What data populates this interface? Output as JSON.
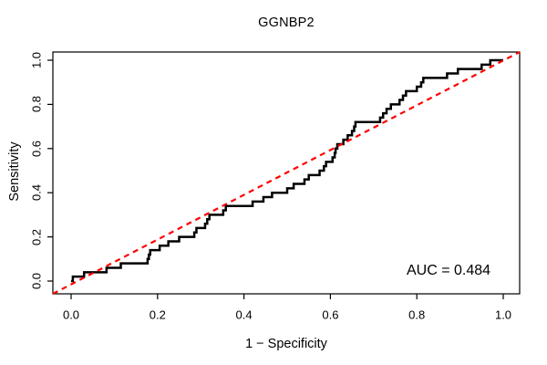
{
  "figure": {
    "title": "GGNBP2",
    "annotation": {
      "auc_label": "AUC = 0.484",
      "auc_value": 0.484
    }
  },
  "chart_data": {
    "type": "line",
    "subtype": "roc-step-curve",
    "title": "GGNBP2",
    "xlabel": "1 − Specificity",
    "ylabel": "Sensitivity",
    "xlim": [
      0,
      1
    ],
    "ylim": [
      0,
      1
    ],
    "grid": false,
    "legend_position": "none",
    "x_ticks": [
      0.0,
      0.2,
      0.4,
      0.6,
      0.8,
      1.0
    ],
    "y_ticks": [
      0.0,
      0.2,
      0.4,
      0.6,
      0.8,
      1.0
    ],
    "x_tick_labels": [
      "0.0",
      "0.2",
      "0.4",
      "0.6",
      "0.8",
      "1.0"
    ],
    "y_tick_labels": [
      "0.0",
      "0.2",
      "0.4",
      "0.6",
      "0.8",
      "1.0"
    ],
    "annotations": [
      {
        "text": "AUC = 0.484",
        "x": 0.87,
        "y": 0.05
      }
    ],
    "series": [
      {
        "name": "ROC curve",
        "color": "#000000",
        "style": "solid",
        "line_width": 2.5,
        "draw": "step",
        "points": [
          [
            0.0,
            0.0
          ],
          [
            0.004,
            0.02
          ],
          [
            0.03,
            0.04
          ],
          [
            0.082,
            0.06
          ],
          [
            0.115,
            0.08
          ],
          [
            0.177,
            0.1
          ],
          [
            0.18,
            0.12
          ],
          [
            0.183,
            0.14
          ],
          [
            0.205,
            0.16
          ],
          [
            0.225,
            0.18
          ],
          [
            0.25,
            0.2
          ],
          [
            0.285,
            0.22
          ],
          [
            0.29,
            0.24
          ],
          [
            0.31,
            0.26
          ],
          [
            0.315,
            0.28
          ],
          [
            0.32,
            0.3
          ],
          [
            0.352,
            0.32
          ],
          [
            0.358,
            0.34
          ],
          [
            0.42,
            0.36
          ],
          [
            0.445,
            0.38
          ],
          [
            0.465,
            0.4
          ],
          [
            0.5,
            0.42
          ],
          [
            0.515,
            0.44
          ],
          [
            0.54,
            0.46
          ],
          [
            0.55,
            0.48
          ],
          [
            0.575,
            0.5
          ],
          [
            0.585,
            0.52
          ],
          [
            0.59,
            0.54
          ],
          [
            0.605,
            0.56
          ],
          [
            0.61,
            0.58
          ],
          [
            0.612,
            0.6
          ],
          [
            0.616,
            0.62
          ],
          [
            0.63,
            0.64
          ],
          [
            0.64,
            0.66
          ],
          [
            0.65,
            0.68
          ],
          [
            0.655,
            0.7
          ],
          [
            0.658,
            0.72
          ],
          [
            0.715,
            0.74
          ],
          [
            0.722,
            0.76
          ],
          [
            0.73,
            0.78
          ],
          [
            0.74,
            0.8
          ],
          [
            0.76,
            0.82
          ],
          [
            0.768,
            0.84
          ],
          [
            0.775,
            0.86
          ],
          [
            0.8,
            0.88
          ],
          [
            0.81,
            0.9
          ],
          [
            0.815,
            0.92
          ],
          [
            0.87,
            0.94
          ],
          [
            0.895,
            0.96
          ],
          [
            0.95,
            0.98
          ],
          [
            0.97,
            1.0
          ],
          [
            1.0,
            1.0
          ]
        ]
      },
      {
        "name": "Chance diagonal",
        "color": "#FF0000",
        "style": "dashed",
        "line_width": 2.2,
        "draw": "line",
        "points": [
          [
            0,
            0
          ],
          [
            1,
            1
          ]
        ]
      }
    ]
  }
}
